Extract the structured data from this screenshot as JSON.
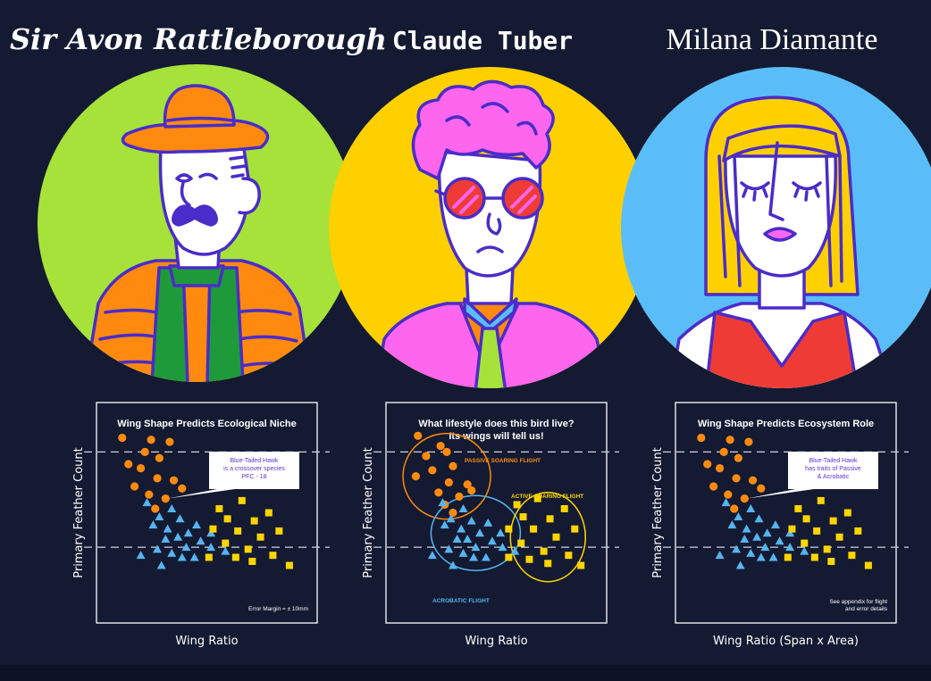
{
  "colors": {
    "background": "#131a31",
    "green": "#a6e23a",
    "yellow": "#ffd000",
    "blue": "#5bbdf8",
    "orange": "#ff8a0f",
    "purple": "#4a2cc9",
    "pink": "#ff66ee",
    "red": "#ef3b36",
    "point_orange": "#ff8a0f",
    "point_blue": "#56b4f0",
    "point_yellow": "#ffd500"
  },
  "characters": [
    {
      "name": "Sir Avon Rattleborough",
      "bg": "green"
    },
    {
      "name": "Claude Tuber",
      "bg": "yellow"
    },
    {
      "name": "Milana Diamante",
      "bg": "blue"
    }
  ],
  "charts": [
    {
      "title": "Wing Shape Predicts Ecological Niche",
      "xlabel": "Wing Ratio",
      "ylabel": "Primary Feather Count",
      "callout": [
        "Blue-Tailed Hawk",
        "is a crossover species",
        "PFC - 18"
      ],
      "footnote": [
        "Error Margin = ± 10mm"
      ]
    },
    {
      "title": "What lifestyle does this bird live? Its wings will tell us!",
      "title_lines": [
        "What lifestyle does this bird live?",
        "Its wings will tell us!"
      ],
      "xlabel": "Wing Ratio",
      "ylabel": "Primary Feather Count",
      "group_labels": {
        "passive": "PASSIVE SOARING FLIGHT",
        "active": "ACTIVE SOARING FLIGHT",
        "acrobatic": "ACROBATIC FLIGHT"
      }
    },
    {
      "title": "Wing Shape Predicts Ecosystem Role",
      "xlabel": "Wing Ratio (Span x Area)",
      "ylabel": "Primary Feather Count",
      "callout": [
        "Blue-Tailed Hawk",
        "has traits of Passive",
        "& Acrobatic"
      ],
      "footnote": [
        "See appendix for flight",
        "and error details"
      ]
    }
  ],
  "chart_data": [
    {
      "type": "scatter",
      "title": "Wing Shape Predicts Ecological Niche",
      "xlabel": "Wing Ratio",
      "ylabel": "Primary Feather Count",
      "xlim": [
        0,
        100
      ],
      "ylim": [
        0,
        100
      ],
      "reference_lines_y": [
        80,
        33
      ],
      "series": [
        {
          "marker": "circle",
          "color": "point_orange",
          "points": [
            [
              9,
              87
            ],
            [
              23,
              86
            ],
            [
              32,
              85
            ],
            [
              20,
              80
            ],
            [
              27,
              77
            ],
            [
              18,
              72
            ],
            [
              12,
              74
            ],
            [
              26,
              67
            ],
            [
              34,
              66
            ],
            [
              15,
              63
            ],
            [
              30,
              57
            ],
            [
              22,
              59
            ],
            [
              38,
              62
            ],
            [
              25,
              52
            ]
          ]
        },
        {
          "marker": "triangle",
          "color": "point_blue",
          "points": [
            [
              21,
              55
            ],
            [
              33,
              52
            ],
            [
              27,
              48
            ],
            [
              37,
              47
            ],
            [
              31,
              42
            ],
            [
              24,
              44
            ],
            [
              45,
              44
            ],
            [
              36,
              38
            ],
            [
              30,
              37
            ],
            [
              47,
              36
            ],
            [
              41,
              40
            ],
            [
              52,
              40
            ],
            [
              26,
              32
            ],
            [
              40,
              33
            ],
            [
              33,
              30
            ],
            [
              38,
              28
            ],
            [
              44,
              28
            ],
            [
              18,
              29
            ],
            [
              52,
              33
            ],
            [
              28,
              24
            ],
            [
              59,
              31
            ]
          ]
        },
        {
          "marker": "square",
          "color": "point_yellow",
          "points": [
            [
              56,
              52
            ],
            [
              67,
              56
            ],
            [
              80,
              50
            ],
            [
              60,
              47
            ],
            [
              73,
              46
            ],
            [
              53,
              42
            ],
            [
              65,
              41
            ],
            [
              85,
              41
            ],
            [
              76,
              38
            ],
            [
              59,
              35
            ],
            [
              70,
              32
            ],
            [
              64,
              28
            ],
            [
              82,
              29
            ],
            [
              51,
              28
            ],
            [
              72,
              26
            ],
            [
              90,
              24
            ]
          ]
        }
      ],
      "callout_target": [
        31,
        57
      ]
    },
    {
      "type": "scatter",
      "title": "What lifestyle does this bird live? Its wings will tell us!",
      "xlabel": "Wing Ratio",
      "ylabel": "Primary Feather Count",
      "xlim": [
        0,
        100
      ],
      "ylim": [
        0,
        100
      ],
      "reference_lines_y": [
        80,
        33
      ],
      "groups": [
        "PASSIVE SOARING FLIGHT",
        "ACTIVE SOARING FLIGHT",
        "ACROBATIC FLIGHT"
      ],
      "series": [
        {
          "group": "PASSIVE SOARING FLIGHT",
          "marker": "circle",
          "color": "point_orange",
          "points": [
            [
              12,
              88
            ],
            [
              23,
              83
            ],
            [
              26,
              80
            ],
            [
              16,
              78
            ],
            [
              29,
              73
            ],
            [
              19,
              71
            ],
            [
              11,
              68
            ],
            [
              27,
              65
            ],
            [
              36,
              64
            ],
            [
              22,
              60
            ],
            [
              32,
              58
            ],
            [
              25,
              54
            ],
            [
              38,
              61
            ],
            [
              29,
              50
            ]
          ]
        },
        {
          "group": "ACROBATIC FLIGHT",
          "marker": "triangle",
          "color": "point_blue",
          "points": [
            [
              24,
              55
            ],
            [
              34,
              52
            ],
            [
              28,
              47
            ],
            [
              38,
              46
            ],
            [
              33,
              42
            ],
            [
              25,
              44
            ],
            [
              46,
              45
            ],
            [
              36,
              37
            ],
            [
              31,
              37
            ],
            [
              48,
              36
            ],
            [
              42,
              40
            ],
            [
              52,
              40
            ],
            [
              27,
              32
            ],
            [
              40,
              33
            ],
            [
              34,
              30
            ],
            [
              39,
              28
            ],
            [
              45,
              28
            ],
            [
              19,
              29
            ],
            [
              53,
              33
            ],
            [
              29,
              24
            ],
            [
              59,
              31
            ]
          ]
        },
        {
          "group": "ACTIVE SOARING FLIGHT",
          "marker": "square",
          "color": "point_yellow",
          "points": [
            [
              60,
              54
            ],
            [
              70,
              57
            ],
            [
              83,
              52
            ],
            [
              63,
              48
            ],
            [
              76,
              47
            ],
            [
              56,
              42
            ],
            [
              68,
              42
            ],
            [
              88,
              42
            ],
            [
              79,
              38
            ],
            [
              62,
              35
            ],
            [
              73,
              31
            ],
            [
              66,
              27
            ],
            [
              85,
              29
            ],
            [
              56,
              28
            ],
            [
              75,
              25
            ],
            [
              91,
              24
            ]
          ]
        }
      ]
    },
    {
      "type": "scatter",
      "title": "Wing Shape Predicts Ecosystem Role",
      "xlabel": "Wing Ratio (Span x Area)",
      "ylabel": "Primary Feather Count",
      "xlim": [
        0,
        100
      ],
      "ylim": [
        0,
        100
      ],
      "reference_lines_y": [
        80,
        33
      ],
      "series": [
        {
          "marker": "circle",
          "color": "point_orange",
          "points": [
            [
              9,
              87
            ],
            [
              23,
              86
            ],
            [
              32,
              85
            ],
            [
              20,
              80
            ],
            [
              27,
              77
            ],
            [
              18,
              72
            ],
            [
              12,
              74
            ],
            [
              26,
              67
            ],
            [
              34,
              66
            ],
            [
              15,
              63
            ],
            [
              30,
              57
            ],
            [
              22,
              59
            ],
            [
              38,
              62
            ],
            [
              25,
              52
            ]
          ]
        },
        {
          "marker": "triangle",
          "color": "point_blue",
          "points": [
            [
              21,
              55
            ],
            [
              33,
              52
            ],
            [
              27,
              48
            ],
            [
              37,
              47
            ],
            [
              31,
              42
            ],
            [
              24,
              44
            ],
            [
              45,
              44
            ],
            [
              36,
              38
            ],
            [
              30,
              37
            ],
            [
              47,
              36
            ],
            [
              41,
              40
            ],
            [
              52,
              40
            ],
            [
              26,
              32
            ],
            [
              40,
              33
            ],
            [
              33,
              30
            ],
            [
              38,
              28
            ],
            [
              44,
              28
            ],
            [
              18,
              29
            ],
            [
              52,
              33
            ],
            [
              28,
              24
            ],
            [
              59,
              31
            ]
          ]
        },
        {
          "marker": "square",
          "color": "point_yellow",
          "points": [
            [
              56,
              52
            ],
            [
              67,
              56
            ],
            [
              80,
              50
            ],
            [
              60,
              47
            ],
            [
              73,
              46
            ],
            [
              53,
              42
            ],
            [
              65,
              41
            ],
            [
              85,
              41
            ],
            [
              76,
              38
            ],
            [
              59,
              35
            ],
            [
              70,
              32
            ],
            [
              64,
              28
            ],
            [
              82,
              29
            ],
            [
              51,
              28
            ],
            [
              72,
              26
            ],
            [
              90,
              24
            ]
          ]
        }
      ],
      "callout_target": [
        31,
        57
      ]
    }
  ]
}
